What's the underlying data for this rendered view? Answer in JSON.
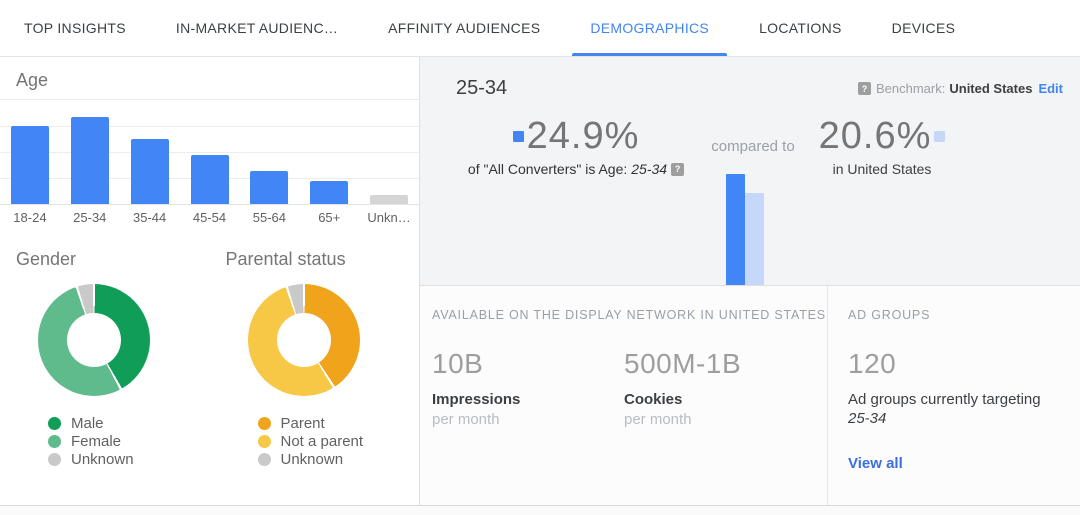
{
  "tabs": [
    {
      "label": "TOP INSIGHTS",
      "active": false
    },
    {
      "label": "IN-MARKET AUDIENC…",
      "active": false
    },
    {
      "label": "AFFINITY AUDIENCES",
      "active": false
    },
    {
      "label": "DEMOGRAPHICS",
      "active": true
    },
    {
      "label": "LOCATIONS",
      "active": false
    },
    {
      "label": "DEVICES",
      "active": false
    }
  ],
  "chart_data": [
    {
      "id": "age",
      "type": "bar",
      "title": "Age",
      "categories": [
        "18-24",
        "25-34",
        "35-44",
        "45-54",
        "55-64",
        "65+",
        "Unkn…"
      ],
      "values": [
        22.3,
        24.9,
        18.6,
        14.0,
        9.4,
        6.6,
        2.6
      ],
      "unit": "% of all converters",
      "bar_colors": [
        "#4285f4",
        "#4285f4",
        "#4285f4",
        "#4285f4",
        "#4285f4",
        "#4285f4",
        "#d5d5d5"
      ],
      "ylim": [
        0,
        30
      ],
      "grid": true,
      "y_axis_labels": false
    },
    {
      "id": "gender",
      "type": "pie",
      "title": "Gender",
      "slices": [
        {
          "label": "Male",
          "value": 42,
          "color": "#0f9d58"
        },
        {
          "label": "Female",
          "value": 53,
          "color": "#5fbb8c"
        },
        {
          "label": "Unknown",
          "value": 5,
          "color": "#c9c9c9"
        }
      ],
      "donut": true,
      "legend_position": "bottom-left"
    },
    {
      "id": "parental",
      "type": "pie",
      "title": "Parental status",
      "slices": [
        {
          "label": "Parent",
          "value": 41,
          "color": "#f0a41c"
        },
        {
          "label": "Not a parent",
          "value": 54,
          "color": "#f7c845"
        },
        {
          "label": "Unknown",
          "value": 5,
          "color": "#c9c9c9"
        }
      ],
      "donut": true,
      "legend_position": "bottom-left"
    },
    {
      "id": "comparison",
      "type": "bar",
      "title": "25-34 share comparison",
      "categories": [
        "All Converters",
        "United States"
      ],
      "values": [
        24.9,
        20.6
      ],
      "bar_colors": [
        "#4285f4",
        "#c5d8f9"
      ],
      "grid": false
    }
  ],
  "detail": {
    "title": "25-34",
    "benchmark": {
      "label": "Benchmark:",
      "value": "United States",
      "edit": "Edit"
    },
    "primary": {
      "value": "24.9%",
      "caption_prefix": "of \"All Converters\" is Age:",
      "caption_em": "25-34",
      "marker_color": "#4285f4"
    },
    "compared_label": "compared to",
    "secondary": {
      "value": "20.6%",
      "caption": "in United States",
      "marker_color": "#c5d8f9"
    }
  },
  "availability": {
    "header": "AVAILABLE ON THE DISPLAY NETWORK IN UNITED STATES",
    "stats": [
      {
        "value": "10B",
        "label": "Impressions",
        "sub": "per month"
      },
      {
        "value": "500M-1B",
        "label": "Cookies",
        "sub": "per month"
      }
    ]
  },
  "ad_groups": {
    "header": "AD GROUPS",
    "value": "120",
    "caption": "Ad groups currently targeting",
    "caption_em": "25-34",
    "link": "View all"
  },
  "colors": {
    "accent_blue": "#4285f4",
    "light_blue": "#c5d8f9",
    "male_green": "#0f9d58",
    "female_green": "#5fbb8c",
    "parent_orange": "#f0a41c",
    "not_parent_yellow": "#f7c845",
    "unknown_gray": "#c9c9c9"
  }
}
